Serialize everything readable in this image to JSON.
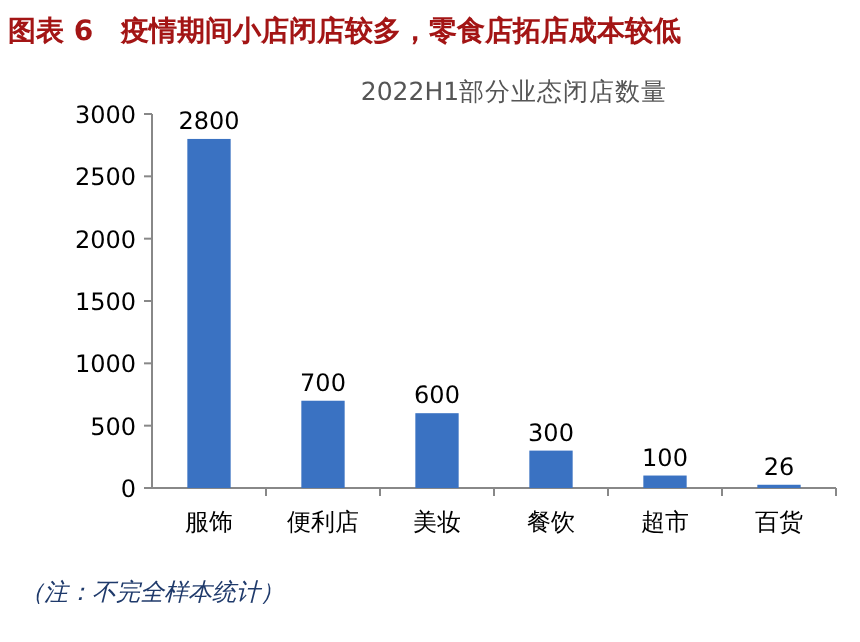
{
  "chart_data": {
    "type": "bar",
    "title": "图表 6　疫情期间小店闭店较多，零食店拓店成本较低",
    "subtitle": "2022H1部分业态闭店数量",
    "categories": [
      "服饰",
      "便利店",
      "美妆",
      "餐饮",
      "超市",
      "百货"
    ],
    "values": [
      2800,
      700,
      600,
      300,
      100,
      26
    ],
    "color": "#3a72c2",
    "ylim": [
      0,
      3000
    ],
    "yticks": [
      0,
      500,
      1000,
      1500,
      2000,
      2500,
      3000
    ],
    "data_labels": true,
    "annotations": [
      "（注：不完全样本统计）"
    ]
  }
}
